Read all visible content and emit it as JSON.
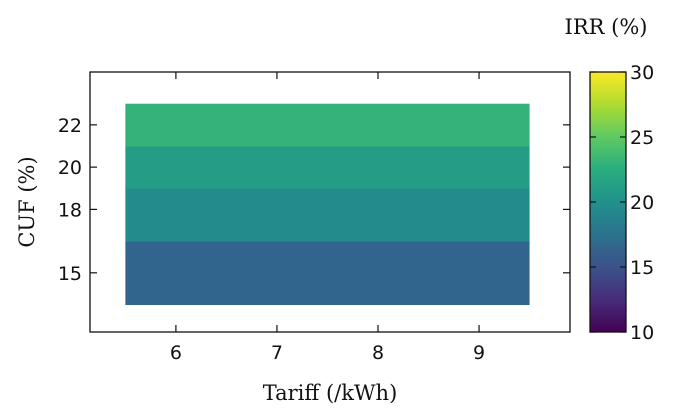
{
  "chart_data": {
    "type": "heatmap",
    "title": "",
    "xlabel": "Tariff (/kWh)",
    "ylabel": "CUF  (%)",
    "colorbar_label": "IRR (%)",
    "colormap": "viridis",
    "x_range": [
      5.5,
      9.5
    ],
    "xlim": [
      5.15,
      9.9
    ],
    "x_ticks": [
      "6",
      "7",
      "8",
      "9"
    ],
    "y_ticks": [
      "15",
      "18",
      "20",
      "22"
    ],
    "ylim": [
      12.2,
      24.5
    ],
    "colorbar_range": [
      10,
      30
    ],
    "colorbar_ticks": [
      "10",
      "15",
      "20",
      "25",
      "30"
    ],
    "rows": [
      {
        "y_from": 13.5,
        "y_to": 16.5,
        "cuf": 15,
        "irr": 16.5
      },
      {
        "y_from": 16.5,
        "y_to": 19.0,
        "cuf": 18,
        "irr": 19.5
      },
      {
        "y_from": 19.0,
        "y_to": 21.0,
        "cuf": 20,
        "irr": 21.0
      },
      {
        "y_from": 21.0,
        "y_to": 23.0,
        "cuf": 22,
        "irr": 23.0
      }
    ]
  }
}
